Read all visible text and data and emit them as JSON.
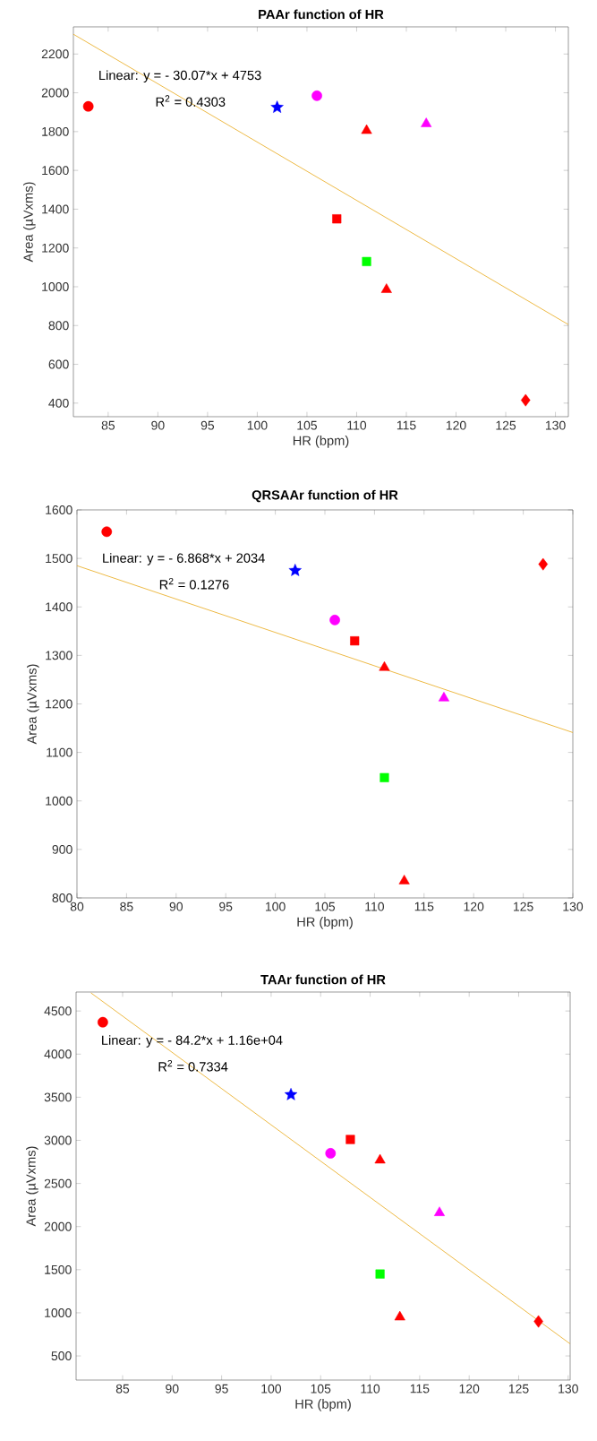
{
  "chart_data": [
    {
      "type": "scatter",
      "title": "PAAr function of HR",
      "xlabel": "HR (bpm)",
      "ylabel": "Area (µVxms)",
      "xlim": [
        81.5,
        131.3
      ],
      "ylim": [
        330,
        2340
      ],
      "xticks": [
        85,
        90,
        95,
        100,
        105,
        110,
        115,
        120,
        125,
        130
      ],
      "yticks": [
        400,
        600,
        800,
        1000,
        1200,
        1400,
        1600,
        1800,
        2000,
        2200
      ],
      "annotations": [
        "Linear:  y = - 30.07*x + 4753",
        "R$^{2}$ = 0.4303"
      ],
      "series": [
        {
          "x": [
            83
          ],
          "values": [
            1930
          ],
          "color": "#ff0000",
          "marker": "circle"
        },
        {
          "x": [
            102
          ],
          "values": [
            1925
          ],
          "color": "#0000ff",
          "marker": "star"
        },
        {
          "x": [
            106
          ],
          "values": [
            1985
          ],
          "color": "#ff00ff",
          "marker": "circle"
        },
        {
          "x": [
            111
          ],
          "values": [
            1805
          ],
          "color": "#ff0000",
          "marker": "triangle"
        },
        {
          "x": [
            117
          ],
          "values": [
            1840
          ],
          "color": "#ff00ff",
          "marker": "triangle"
        },
        {
          "x": [
            108
          ],
          "values": [
            1350
          ],
          "color": "#ff0000",
          "marker": "square"
        },
        {
          "x": [
            111
          ],
          "values": [
            1130
          ],
          "color": "#00ff00",
          "marker": "square"
        },
        {
          "x": [
            113
          ],
          "values": [
            985
          ],
          "color": "#ff0000",
          "marker": "triangle"
        },
        {
          "x": [
            127
          ],
          "values": [
            415
          ],
          "color": "#ff0000",
          "marker": "diamond"
        },
        {
          "type": "line",
          "x": [
            81.5,
            131.3
          ],
          "values": [
            2302,
            805
          ],
          "color": "#e8a818",
          "marker": "none"
        }
      ]
    },
    {
      "type": "scatter",
      "title": "QRSAAr function of HR",
      "xlabel": "HR (bpm)",
      "ylabel": "Area (µVxms)",
      "xlim": [
        80,
        130
      ],
      "ylim": [
        800,
        1600
      ],
      "xticks": [
        80,
        85,
        90,
        95,
        100,
        105,
        110,
        115,
        120,
        125,
        130
      ],
      "yticks": [
        800,
        900,
        1000,
        1100,
        1200,
        1300,
        1400,
        1500,
        1600
      ],
      "annotations": [
        "Linear:  y = - 6.868*x + 2034",
        "R$^{2}$ = 0.1276"
      ],
      "series": [
        {
          "x": [
            83
          ],
          "values": [
            1555
          ],
          "color": "#ff0000",
          "marker": "circle"
        },
        {
          "x": [
            102
          ],
          "values": [
            1475
          ],
          "color": "#0000ff",
          "marker": "star"
        },
        {
          "x": [
            106
          ],
          "values": [
            1373
          ],
          "color": "#ff00ff",
          "marker": "circle"
        },
        {
          "x": [
            108
          ],
          "values": [
            1330
          ],
          "color": "#ff0000",
          "marker": "square"
        },
        {
          "x": [
            111
          ],
          "values": [
            1275
          ],
          "color": "#ff0000",
          "marker": "triangle"
        },
        {
          "x": [
            117
          ],
          "values": [
            1212
          ],
          "color": "#ff00ff",
          "marker": "triangle"
        },
        {
          "x": [
            111
          ],
          "values": [
            1048
          ],
          "color": "#00ff00",
          "marker": "square"
        },
        {
          "x": [
            113
          ],
          "values": [
            835
          ],
          "color": "#ff0000",
          "marker": "triangle"
        },
        {
          "x": [
            127
          ],
          "values": [
            1488
          ],
          "color": "#ff0000",
          "marker": "diamond"
        },
        {
          "type": "line",
          "x": [
            80,
            130
          ],
          "values": [
            1485,
            1141
          ],
          "color": "#e8a818",
          "marker": "none"
        }
      ]
    },
    {
      "type": "scatter",
      "title": "TAAr function of HR",
      "xlabel": "HR (bpm)",
      "ylabel": "Area (µVxms)",
      "xlim": [
        80.3,
        130.2
      ],
      "ylim": [
        220,
        4720
      ],
      "xticks": [
        85,
        90,
        95,
        100,
        105,
        110,
        115,
        120,
        125,
        130
      ],
      "yticks": [
        500,
        1000,
        1500,
        2000,
        2500,
        3000,
        3500,
        4000,
        4500
      ],
      "annotations": [
        "Linear:  y = - 84.2*x + 1.16e+04",
        "R$^{2}$ = 0.7334"
      ],
      "series": [
        {
          "x": [
            83
          ],
          "values": [
            4370
          ],
          "color": "#ff0000",
          "marker": "circle"
        },
        {
          "x": [
            102
          ],
          "values": [
            3530
          ],
          "color": "#0000ff",
          "marker": "star"
        },
        {
          "x": [
            106
          ],
          "values": [
            2850
          ],
          "color": "#ff00ff",
          "marker": "circle"
        },
        {
          "x": [
            108
          ],
          "values": [
            3010
          ],
          "color": "#ff0000",
          "marker": "square"
        },
        {
          "x": [
            111
          ],
          "values": [
            2770
          ],
          "color": "#ff0000",
          "marker": "triangle"
        },
        {
          "x": [
            117
          ],
          "values": [
            2160
          ],
          "color": "#ff00ff",
          "marker": "triangle"
        },
        {
          "x": [
            111
          ],
          "values": [
            1450
          ],
          "color": "#00ff00",
          "marker": "square"
        },
        {
          "x": [
            113
          ],
          "values": [
            950
          ],
          "color": "#ff0000",
          "marker": "triangle"
        },
        {
          "x": [
            127
          ],
          "values": [
            900
          ],
          "color": "#ff0000",
          "marker": "diamond"
        },
        {
          "type": "line",
          "x": [
            81.8,
            130.2
          ],
          "values": [
            4710,
            640
          ],
          "color": "#e8a818",
          "marker": "none"
        }
      ]
    }
  ]
}
